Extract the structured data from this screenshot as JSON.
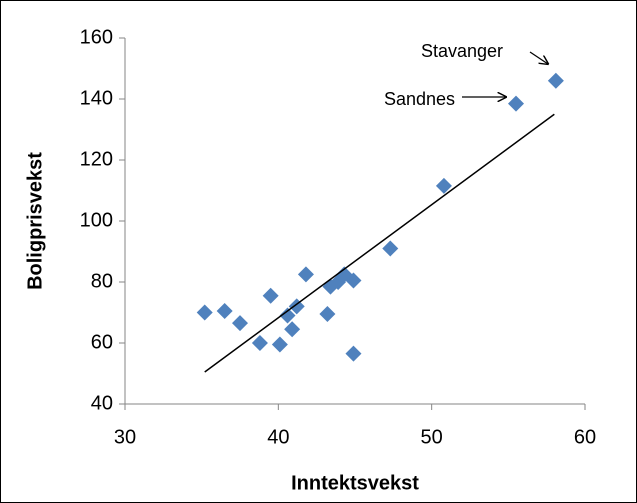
{
  "chart_data": {
    "type": "scatter",
    "x_label": "Inntektsvekst",
    "y_label": "Boligprisvekst",
    "series": [
      {
        "color": "#4f81bd",
        "x": [
          35.2,
          36.5,
          37.5,
          38.8,
          39.5,
          40.1,
          40.6,
          40.9,
          41.2,
          41.8,
          43.2,
          43.4,
          43.9,
          44.3,
          44.9,
          44.9,
          47.3,
          50.8,
          55.5,
          58.1
        ],
        "values": [
          70,
          70.5,
          66.5,
          60,
          75.5,
          59.5,
          69,
          64.5,
          72,
          82.5,
          69.5,
          78.5,
          80,
          82.5,
          80.5,
          56.5,
          91,
          111.5,
          138.5,
          146
        ]
      }
    ],
    "trendline": {
      "x": [
        35.2,
        58
      ],
      "values": [
        50.5,
        135
      ]
    },
    "annotations": [
      "Stavanger",
      "Sandnes"
    ],
    "xlim": [
      30,
      60
    ],
    "xticks": [
      30,
      40,
      50,
      60
    ],
    "ylim": [
      40,
      160
    ],
    "yticks": [
      40,
      60,
      80,
      100,
      120,
      140,
      160
    ],
    "grid": false
  }
}
